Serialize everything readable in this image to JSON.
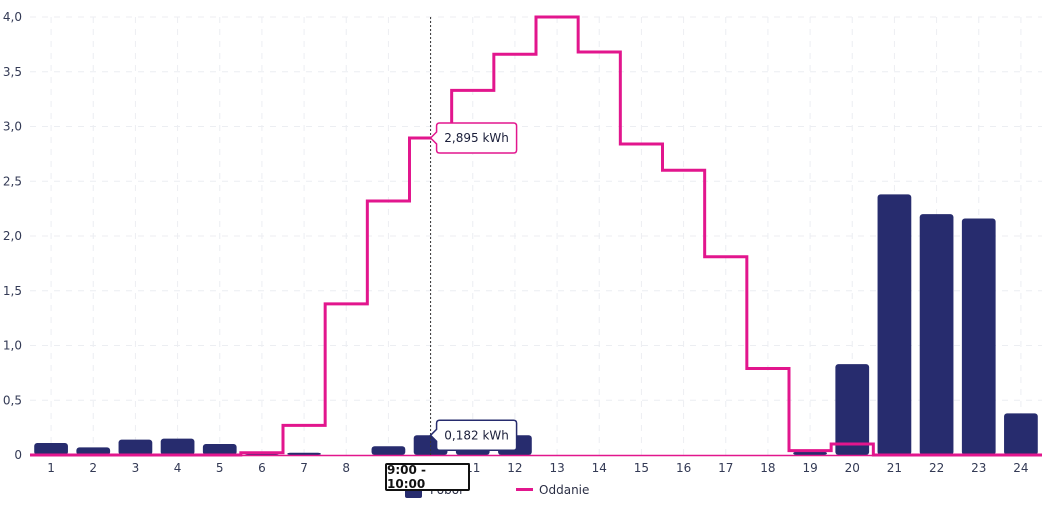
{
  "chart_data": {
    "type": "bar",
    "categories": [
      "1",
      "2",
      "3",
      "4",
      "5",
      "6",
      "7",
      "8",
      "9",
      "10",
      "11",
      "12",
      "13",
      "14",
      "15",
      "16",
      "17",
      "18",
      "19",
      "20",
      "21",
      "22",
      "23",
      "24"
    ],
    "ylim": [
      0,
      4
    ],
    "y_ticks": [
      "0",
      "0,5",
      "1,0",
      "1,5",
      "2,0",
      "2,5",
      "3,0",
      "3,5",
      "4,0"
    ],
    "grid": true,
    "series": [
      {
        "name": "Pobór",
        "type": "bar",
        "color": "#272c6e",
        "values": [
          0.11,
          0.07,
          0.14,
          0.15,
          0.1,
          0.02,
          0.02,
          0.0,
          0.08,
          0.18,
          0.18,
          0.18,
          0.0,
          0.0,
          0.0,
          0.0,
          0.0,
          0.0,
          0.03,
          0.83,
          2.38,
          2.2,
          2.16,
          0.38
        ]
      },
      {
        "name": "Oddanie",
        "type": "step-line",
        "color": "#e2168d",
        "values": [
          0.0,
          0.0,
          0.0,
          0.0,
          0.0,
          0.02,
          0.27,
          1.38,
          2.32,
          2.895,
          3.33,
          3.66,
          4.0,
          3.68,
          2.84,
          2.6,
          1.81,
          0.79,
          0.04,
          0.1,
          0.0,
          0.0,
          0.0,
          0.0
        ]
      }
    ],
    "tooltip": {
      "category_index": 9,
      "time_label": "9:00 - 10:00",
      "oddanie_label": "2,895 kWh",
      "pobor_label": "0,182 kWh"
    },
    "legend": {
      "position": "bottom-center",
      "items": [
        "Pobór",
        "Oddanie"
      ]
    }
  }
}
